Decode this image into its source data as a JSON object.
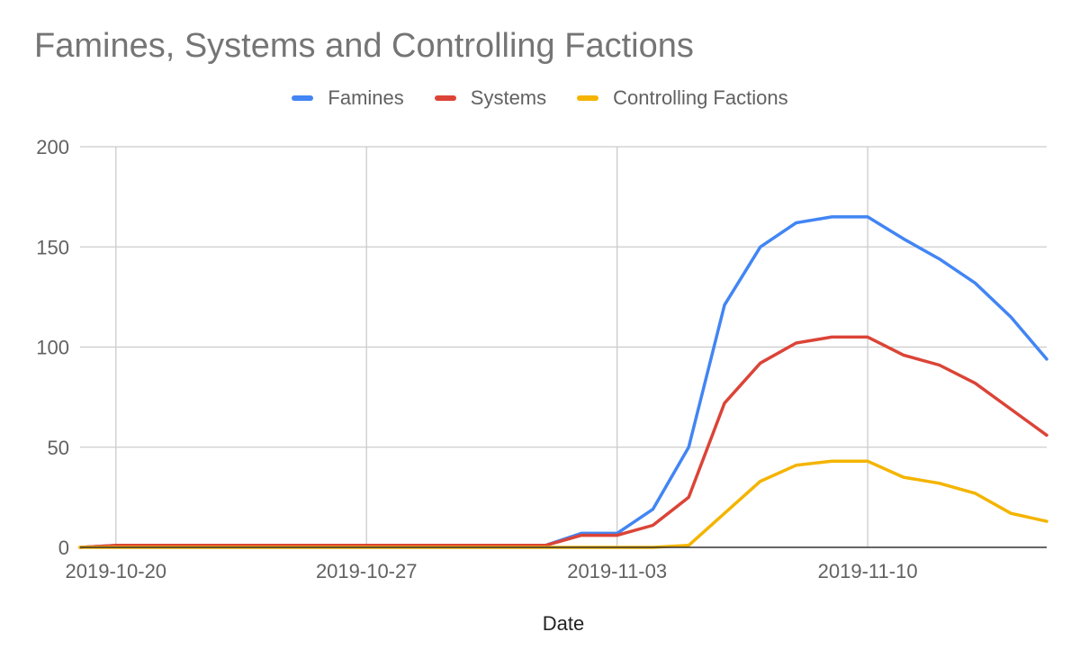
{
  "chart_data": {
    "type": "line",
    "title": "Famines, Systems and Controlling Factions",
    "xlabel": "Date",
    "ylabel": "",
    "ylim": [
      0,
      200
    ],
    "yticks": [
      0,
      50,
      100,
      150,
      200
    ],
    "x": [
      "2019-10-19",
      "2019-10-20",
      "2019-10-21",
      "2019-10-22",
      "2019-10-23",
      "2019-10-24",
      "2019-10-25",
      "2019-10-26",
      "2019-10-27",
      "2019-10-28",
      "2019-10-29",
      "2019-10-30",
      "2019-10-31",
      "2019-11-01",
      "2019-11-02",
      "2019-11-03",
      "2019-11-04",
      "2019-11-05",
      "2019-11-06",
      "2019-11-07",
      "2019-11-08",
      "2019-11-09",
      "2019-11-10",
      "2019-11-11",
      "2019-11-12",
      "2019-11-13",
      "2019-11-14",
      "2019-11-15"
    ],
    "xticks": [
      "2019-10-20",
      "2019-10-27",
      "2019-11-03",
      "2019-11-10"
    ],
    "series": [
      {
        "name": "Famines",
        "color": "#4285f4",
        "values": [
          0,
          1,
          1,
          1,
          1,
          1,
          1,
          1,
          1,
          1,
          1,
          1,
          1,
          1,
          7,
          7,
          19,
          50,
          121,
          150,
          162,
          165,
          165,
          154,
          144,
          132,
          115,
          94
        ]
      },
      {
        "name": "Systems",
        "color": "#db4437",
        "values": [
          0,
          1,
          1,
          1,
          1,
          1,
          1,
          1,
          1,
          1,
          1,
          1,
          1,
          1,
          6,
          6,
          11,
          25,
          72,
          92,
          102,
          105,
          105,
          96,
          91,
          82,
          69,
          56
        ]
      },
      {
        "name": "Controlling Factions",
        "color": "#f4b400",
        "values": [
          0,
          0,
          0,
          0,
          0,
          0,
          0,
          0,
          0,
          0,
          0,
          0,
          0,
          0,
          0,
          0,
          0,
          1,
          17,
          33,
          41,
          43,
          43,
          35,
          32,
          27,
          17,
          13
        ]
      }
    ]
  }
}
